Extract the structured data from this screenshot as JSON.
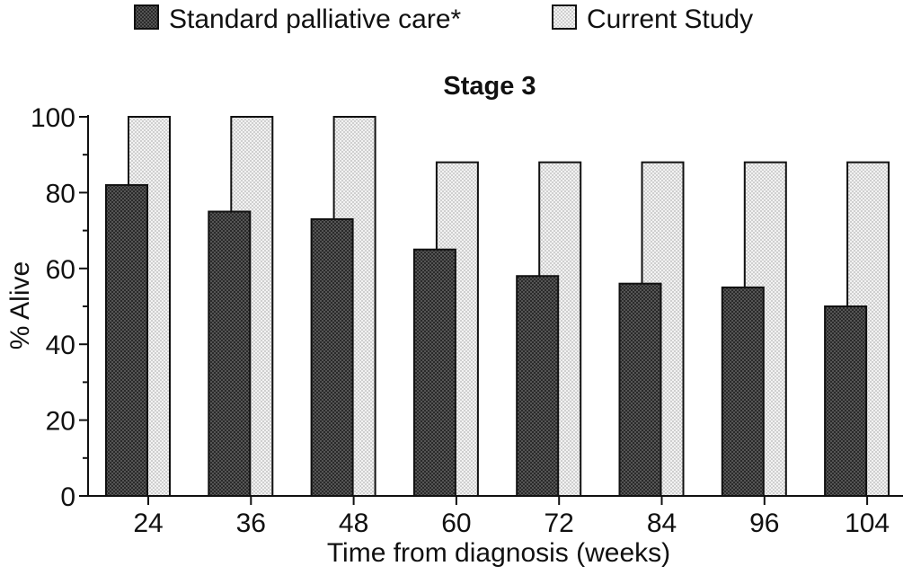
{
  "chart_data": {
    "type": "bar",
    "title": "Stage 3",
    "xlabel": "Time from diagnosis (weeks)",
    "ylabel": "% Alive",
    "categories": [
      "24",
      "36",
      "48",
      "60",
      "72",
      "84",
      "96",
      "104"
    ],
    "ylim": [
      0,
      100
    ],
    "yticks": [
      0,
      20,
      40,
      60,
      80,
      100
    ],
    "grid": false,
    "legend_position": "top",
    "series": [
      {
        "name": "Standard palliative care*",
        "values": [
          82,
          75,
          73,
          65,
          58,
          56,
          55,
          50
        ],
        "color": "#3a3a3a"
      },
      {
        "name": "Current Study",
        "values": [
          100,
          100,
          100,
          88,
          88,
          88,
          88,
          88
        ],
        "color": "#e6e6e6"
      }
    ]
  }
}
